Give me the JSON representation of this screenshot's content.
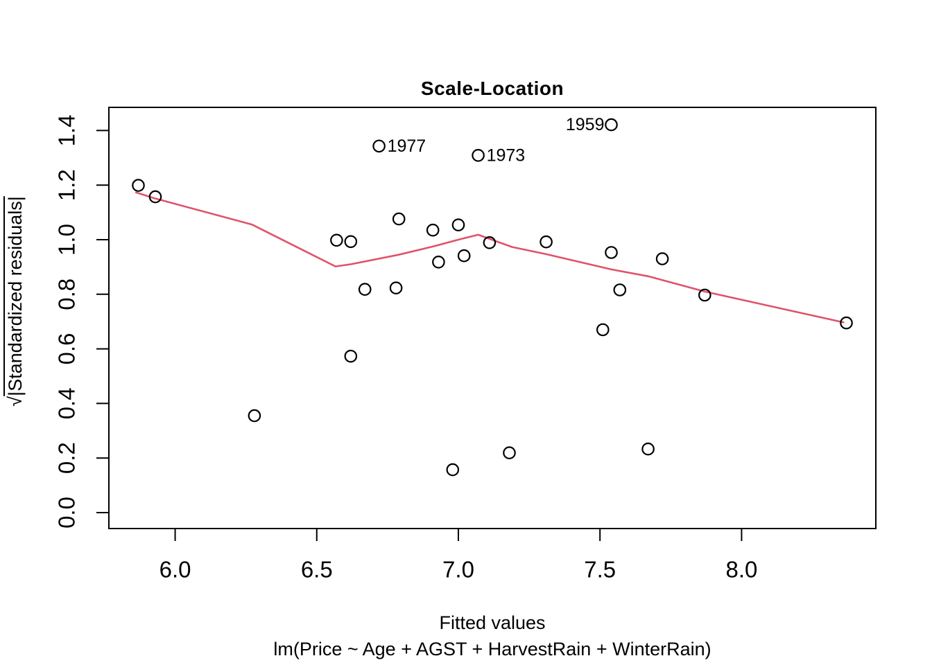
{
  "figure": {
    "title": "Scale-Location",
    "xlabel": "Fitted values",
    "caption": "lm(Price ~ Age + AGST + HarvestRain + WinterRain)",
    "ylabel_sqrt": "√",
    "ylabel_rest": "|Standardized residuals|"
  },
  "chart_data": {
    "type": "scatter",
    "title": "Scale-Location",
    "xlabel": "Fitted values",
    "ylabel": "sqrt(|Standardized residuals|)",
    "model_caption": "lm(Price ~ Age + AGST + HarvestRain + WinterRain)",
    "grid": false,
    "legend": null,
    "xlim": [
      5.766,
      8.474
    ],
    "ylim": [
      -0.0584,
      1.4848
    ],
    "x_ticks": [
      6.0,
      6.5,
      7.0,
      7.5,
      8.0
    ],
    "y_ticks": [
      0.0,
      0.2,
      0.4,
      0.6,
      0.8,
      1.0,
      1.2,
      1.4
    ],
    "labeled_outliers": [
      "1977",
      "1973",
      "1959"
    ],
    "points": [
      {
        "x": 5.87,
        "y": 1.199
      },
      {
        "x": 5.93,
        "y": 1.157
      },
      {
        "x": 6.28,
        "y": 0.355
      },
      {
        "x": 6.57,
        "y": 0.998
      },
      {
        "x": 6.62,
        "y": 0.993
      },
      {
        "x": 6.62,
        "y": 0.573
      },
      {
        "x": 6.67,
        "y": 0.818
      },
      {
        "x": 6.72,
        "y": 1.343,
        "label": "1977",
        "label_side": "right"
      },
      {
        "x": 6.78,
        "y": 0.823
      },
      {
        "x": 6.79,
        "y": 1.076
      },
      {
        "x": 6.91,
        "y": 1.035
      },
      {
        "x": 6.93,
        "y": 0.918
      },
      {
        "x": 6.98,
        "y": 0.157
      },
      {
        "x": 7.0,
        "y": 1.054
      },
      {
        "x": 7.02,
        "y": 0.941
      },
      {
        "x": 7.07,
        "y": 1.309,
        "label": "1973",
        "label_side": "right"
      },
      {
        "x": 7.11,
        "y": 0.989
      },
      {
        "x": 7.18,
        "y": 0.219
      },
      {
        "x": 7.31,
        "y": 0.992
      },
      {
        "x": 7.51,
        "y": 0.67
      },
      {
        "x": 7.54,
        "y": 1.421,
        "label": "1959",
        "label_side": "left"
      },
      {
        "x": 7.54,
        "y": 0.953
      },
      {
        "x": 7.57,
        "y": 0.816
      },
      {
        "x": 7.67,
        "y": 0.233
      },
      {
        "x": 7.72,
        "y": 0.93
      },
      {
        "x": 7.87,
        "y": 0.797
      },
      {
        "x": 8.37,
        "y": 0.695
      }
    ],
    "smooth_line": [
      [
        5.862,
        1.173
      ],
      [
        5.926,
        1.152
      ],
      [
        6.272,
        1.055
      ],
      [
        6.566,
        0.902
      ],
      [
        6.62,
        0.91
      ],
      [
        6.79,
        0.945
      ],
      [
        6.91,
        0.975
      ],
      [
        7.0,
        1.0
      ],
      [
        7.07,
        1.018
      ],
      [
        7.19,
        0.973
      ],
      [
        7.31,
        0.947
      ],
      [
        7.54,
        0.891
      ],
      [
        7.67,
        0.866
      ],
      [
        7.87,
        0.81
      ],
      [
        8.36,
        0.697
      ]
    ],
    "colors": {
      "points": "#000000",
      "smooth": "#DF536B",
      "axis": "#000000",
      "background": "#ffffff"
    }
  }
}
